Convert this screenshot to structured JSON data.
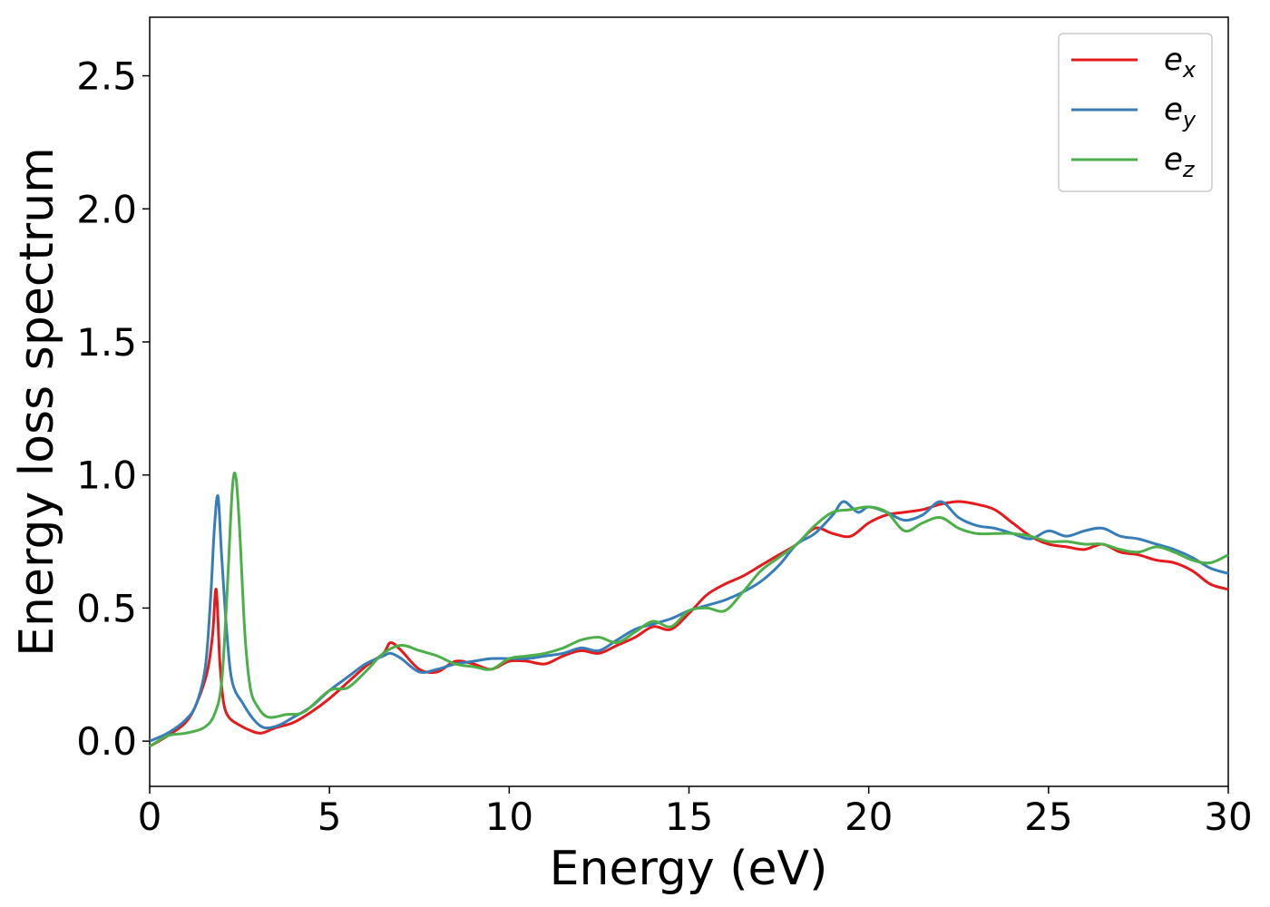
{
  "chart_data": {
    "type": "line",
    "xlabel": "Energy (eV)",
    "ylabel": "Energy loss spectrum",
    "xlim": [
      0,
      30
    ],
    "ylim": [
      -0.17,
      2.72
    ],
    "xticks": [
      0,
      5,
      10,
      15,
      20,
      25,
      30
    ],
    "xtick_labels": [
      "0",
      "5",
      "10",
      "15",
      "20",
      "25",
      "30"
    ],
    "yticks": [
      0.0,
      0.5,
      1.0,
      1.5,
      2.0,
      2.5
    ],
    "ytick_labels": [
      "0.0",
      "0.5",
      "1.0",
      "1.5",
      "2.0",
      "2.5"
    ],
    "grid": false,
    "legend_position": "top-right",
    "series": [
      {
        "name": "e_x",
        "legend_base": "e",
        "legend_sub": "x",
        "color": "#e41a1c",
        "x": [
          0,
          0.5,
          1.0,
          1.3,
          1.6,
          1.75,
          1.85,
          1.95,
          2.05,
          2.2,
          2.5,
          2.8,
          3.1,
          3.5,
          4.0,
          4.5,
          5.0,
          5.5,
          6.0,
          6.5,
          6.7,
          7.0,
          7.5,
          8.0,
          8.5,
          9.0,
          9.5,
          10.0,
          10.5,
          11.0,
          11.5,
          12.0,
          12.5,
          13.0,
          13.5,
          14.0,
          14.5,
          15.0,
          15.5,
          16.0,
          16.5,
          17.0,
          17.5,
          18.0,
          18.5,
          19.0,
          19.5,
          20.0,
          20.5,
          21.0,
          21.5,
          22.0,
          22.5,
          23.0,
          23.5,
          24.0,
          24.5,
          25.0,
          25.5,
          26.0,
          26.5,
          27.0,
          27.5,
          28.0,
          28.5,
          29.0,
          29.5,
          30.0
        ],
        "y": [
          -0.02,
          0.02,
          0.07,
          0.14,
          0.26,
          0.4,
          0.57,
          0.3,
          0.15,
          0.09,
          0.06,
          0.04,
          0.03,
          0.05,
          0.07,
          0.11,
          0.16,
          0.22,
          0.28,
          0.33,
          0.37,
          0.34,
          0.27,
          0.26,
          0.3,
          0.29,
          0.27,
          0.3,
          0.3,
          0.29,
          0.32,
          0.34,
          0.33,
          0.36,
          0.39,
          0.43,
          0.42,
          0.48,
          0.55,
          0.59,
          0.62,
          0.66,
          0.7,
          0.74,
          0.8,
          0.78,
          0.77,
          0.82,
          0.85,
          0.86,
          0.87,
          0.89,
          0.9,
          0.89,
          0.87,
          0.82,
          0.77,
          0.74,
          0.73,
          0.72,
          0.74,
          0.71,
          0.7,
          0.68,
          0.67,
          0.64,
          0.59,
          0.57
        ]
      },
      {
        "name": "e_y",
        "legend_base": "e",
        "legend_sub": "y",
        "color": "#377eb8",
        "x": [
          0,
          0.5,
          1.0,
          1.3,
          1.55,
          1.7,
          1.8,
          1.9,
          2.0,
          2.15,
          2.3,
          2.6,
          2.9,
          3.2,
          3.6,
          4.0,
          4.5,
          5.0,
          5.5,
          6.0,
          6.5,
          6.7,
          7.0,
          7.5,
          8.0,
          8.5,
          9.0,
          9.5,
          10.0,
          10.5,
          11.0,
          11.5,
          12.0,
          12.5,
          13.0,
          13.5,
          14.0,
          14.5,
          15.0,
          15.5,
          16.0,
          16.5,
          17.0,
          17.5,
          18.0,
          18.5,
          19.0,
          19.3,
          19.7,
          20.0,
          20.5,
          21.0,
          21.5,
          22.0,
          22.5,
          23.0,
          23.5,
          24.0,
          24.5,
          25.0,
          25.5,
          26.0,
          26.5,
          27.0,
          27.5,
          28.0,
          28.5,
          29.0,
          29.5,
          30.0
        ],
        "y": [
          0.0,
          0.03,
          0.08,
          0.14,
          0.28,
          0.55,
          0.8,
          0.92,
          0.7,
          0.4,
          0.22,
          0.14,
          0.08,
          0.05,
          0.06,
          0.09,
          0.13,
          0.19,
          0.24,
          0.29,
          0.32,
          0.33,
          0.31,
          0.26,
          0.27,
          0.29,
          0.3,
          0.31,
          0.31,
          0.31,
          0.32,
          0.33,
          0.35,
          0.34,
          0.38,
          0.42,
          0.44,
          0.46,
          0.49,
          0.51,
          0.53,
          0.56,
          0.6,
          0.66,
          0.74,
          0.78,
          0.85,
          0.9,
          0.86,
          0.88,
          0.86,
          0.83,
          0.85,
          0.9,
          0.84,
          0.81,
          0.8,
          0.78,
          0.76,
          0.79,
          0.77,
          0.79,
          0.8,
          0.77,
          0.76,
          0.74,
          0.72,
          0.69,
          0.65,
          0.63
        ]
      },
      {
        "name": "e_z",
        "legend_base": "e",
        "legend_sub": "z",
        "color": "#4daf4a",
        "x": [
          0,
          0.5,
          1.0,
          1.5,
          1.8,
          2.0,
          2.15,
          2.3,
          2.4,
          2.5,
          2.65,
          2.8,
          3.0,
          3.3,
          3.8,
          4.3,
          5.0,
          5.5,
          6.0,
          6.5,
          7.0,
          7.5,
          8.0,
          8.5,
          9.0,
          9.5,
          10.0,
          10.5,
          11.0,
          11.5,
          12.0,
          12.5,
          13.0,
          13.5,
          14.0,
          14.5,
          15.0,
          15.5,
          16.0,
          16.5,
          17.0,
          17.5,
          18.0,
          18.5,
          19.0,
          19.5,
          20.0,
          20.5,
          21.0,
          21.5,
          22.0,
          22.5,
          23.0,
          23.5,
          24.0,
          24.5,
          25.0,
          25.5,
          26.0,
          26.5,
          27.0,
          27.5,
          28.0,
          28.5,
          29.0,
          29.5,
          30.0
        ],
        "y": [
          -0.02,
          0.02,
          0.03,
          0.05,
          0.1,
          0.22,
          0.55,
          0.95,
          0.99,
          0.8,
          0.4,
          0.2,
          0.13,
          0.09,
          0.1,
          0.11,
          0.19,
          0.2,
          0.26,
          0.33,
          0.36,
          0.34,
          0.32,
          0.29,
          0.28,
          0.27,
          0.31,
          0.32,
          0.33,
          0.35,
          0.38,
          0.39,
          0.37,
          0.41,
          0.45,
          0.43,
          0.49,
          0.5,
          0.49,
          0.56,
          0.64,
          0.69,
          0.74,
          0.81,
          0.86,
          0.87,
          0.88,
          0.86,
          0.79,
          0.82,
          0.84,
          0.8,
          0.78,
          0.78,
          0.78,
          0.77,
          0.75,
          0.75,
          0.74,
          0.74,
          0.72,
          0.71,
          0.73,
          0.71,
          0.68,
          0.67,
          0.7
        ]
      }
    ]
  }
}
